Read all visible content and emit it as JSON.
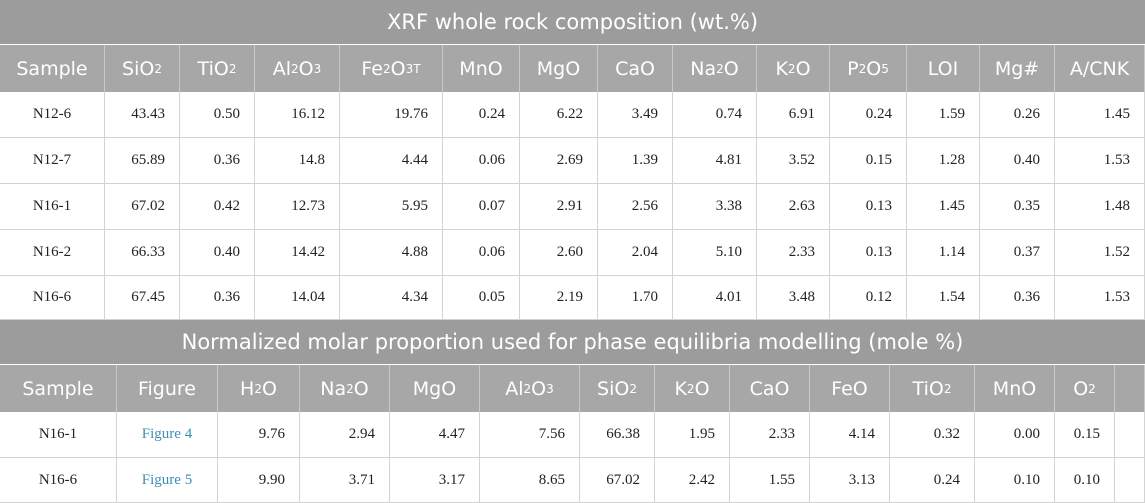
{
  "table1": {
    "title": "XRF whole rock composition (wt.%)",
    "header": [
      [
        {
          "t": "Sample"
        }
      ],
      [
        {
          "t": "SiO"
        },
        {
          "sub": "2"
        }
      ],
      [
        {
          "t": "TiO"
        },
        {
          "sub": "2"
        }
      ],
      [
        {
          "t": "Al"
        },
        {
          "sub": "2"
        },
        {
          "t": "O"
        },
        {
          "sub": "3"
        }
      ],
      [
        {
          "t": "Fe"
        },
        {
          "sub": "2"
        },
        {
          "t": "O"
        },
        {
          "sub": "3"
        },
        {
          "sup": "T"
        }
      ],
      [
        {
          "t": "MnO"
        }
      ],
      [
        {
          "t": "MgO"
        }
      ],
      [
        {
          "t": "CaO"
        }
      ],
      [
        {
          "t": "Na"
        },
        {
          "sub": "2"
        },
        {
          "t": "O"
        }
      ],
      [
        {
          "t": "K"
        },
        {
          "sub": "2"
        },
        {
          "t": "O"
        }
      ],
      [
        {
          "t": "P"
        },
        {
          "sub": "2"
        },
        {
          "t": "O"
        },
        {
          "sub": "5"
        }
      ],
      [
        {
          "t": "LOI"
        }
      ],
      [
        {
          "t": "Mg#"
        }
      ],
      [
        {
          "t": "A/CNK"
        }
      ]
    ],
    "rows": [
      [
        "N12-6",
        "43.43",
        "0.50",
        "16.12",
        "19.76",
        "0.24",
        "6.22",
        "3.49",
        "0.74",
        "6.91",
        "0.24",
        "1.59",
        "0.26",
        "1.45"
      ],
      [
        "N12-7",
        "65.89",
        "0.36",
        "14.8",
        "4.44",
        "0.06",
        "2.69",
        "1.39",
        "4.81",
        "3.52",
        "0.15",
        "1.28",
        "0.40",
        "1.53"
      ],
      [
        "N16-1",
        "67.02",
        "0.42",
        "12.73",
        "5.95",
        "0.07",
        "2.91",
        "2.56",
        "3.38",
        "2.63",
        "0.13",
        "1.45",
        "0.35",
        "1.48"
      ],
      [
        "N16-2",
        "66.33",
        "0.40",
        "14.42",
        "4.88",
        "0.06",
        "2.60",
        "2.04",
        "5.10",
        "2.33",
        "0.13",
        "1.14",
        "0.37",
        "1.52"
      ],
      [
        "N16-6",
        "67.45",
        "0.36",
        "14.04",
        "4.34",
        "0.05",
        "2.19",
        "1.70",
        "4.01",
        "3.48",
        "0.12",
        "1.54",
        "0.36",
        "1.53"
      ]
    ]
  },
  "table2": {
    "title": "Normalized molar proportion used for phase equilibria modelling (mole %)",
    "header": [
      [
        {
          "t": "Sample"
        }
      ],
      [
        {
          "t": "Figure"
        }
      ],
      [
        {
          "t": "H"
        },
        {
          "sub": "2"
        },
        {
          "t": "O"
        }
      ],
      [
        {
          "t": "Na"
        },
        {
          "sub": "2"
        },
        {
          "t": "O"
        }
      ],
      [
        {
          "t": "MgO"
        }
      ],
      [
        {
          "t": "Al"
        },
        {
          "sub": "2"
        },
        {
          "t": "O"
        },
        {
          "sub": "3"
        }
      ],
      [
        {
          "t": "SiO"
        },
        {
          "sub": "2"
        }
      ],
      [
        {
          "t": "K"
        },
        {
          "sub": "2"
        },
        {
          "t": "O"
        }
      ],
      [
        {
          "t": "CaO"
        }
      ],
      [
        {
          "t": "FeO"
        }
      ],
      [
        {
          "t": "TiO"
        },
        {
          "sub": "2"
        }
      ],
      [
        {
          "t": "MnO"
        }
      ],
      [
        {
          "t": "O"
        },
        {
          "sub": "2"
        }
      ]
    ],
    "rows": [
      [
        "N16-1",
        "Figure 4",
        "9.76",
        "2.94",
        "4.47",
        "7.56",
        "66.38",
        "1.95",
        "2.33",
        "4.14",
        "0.32",
        "0.00",
        "0.15"
      ],
      [
        "N16-6",
        "Figure 5",
        "9.90",
        "3.71",
        "3.17",
        "8.65",
        "67.02",
        "2.42",
        "1.55",
        "3.13",
        "0.24",
        "0.10",
        "0.10"
      ]
    ]
  }
}
